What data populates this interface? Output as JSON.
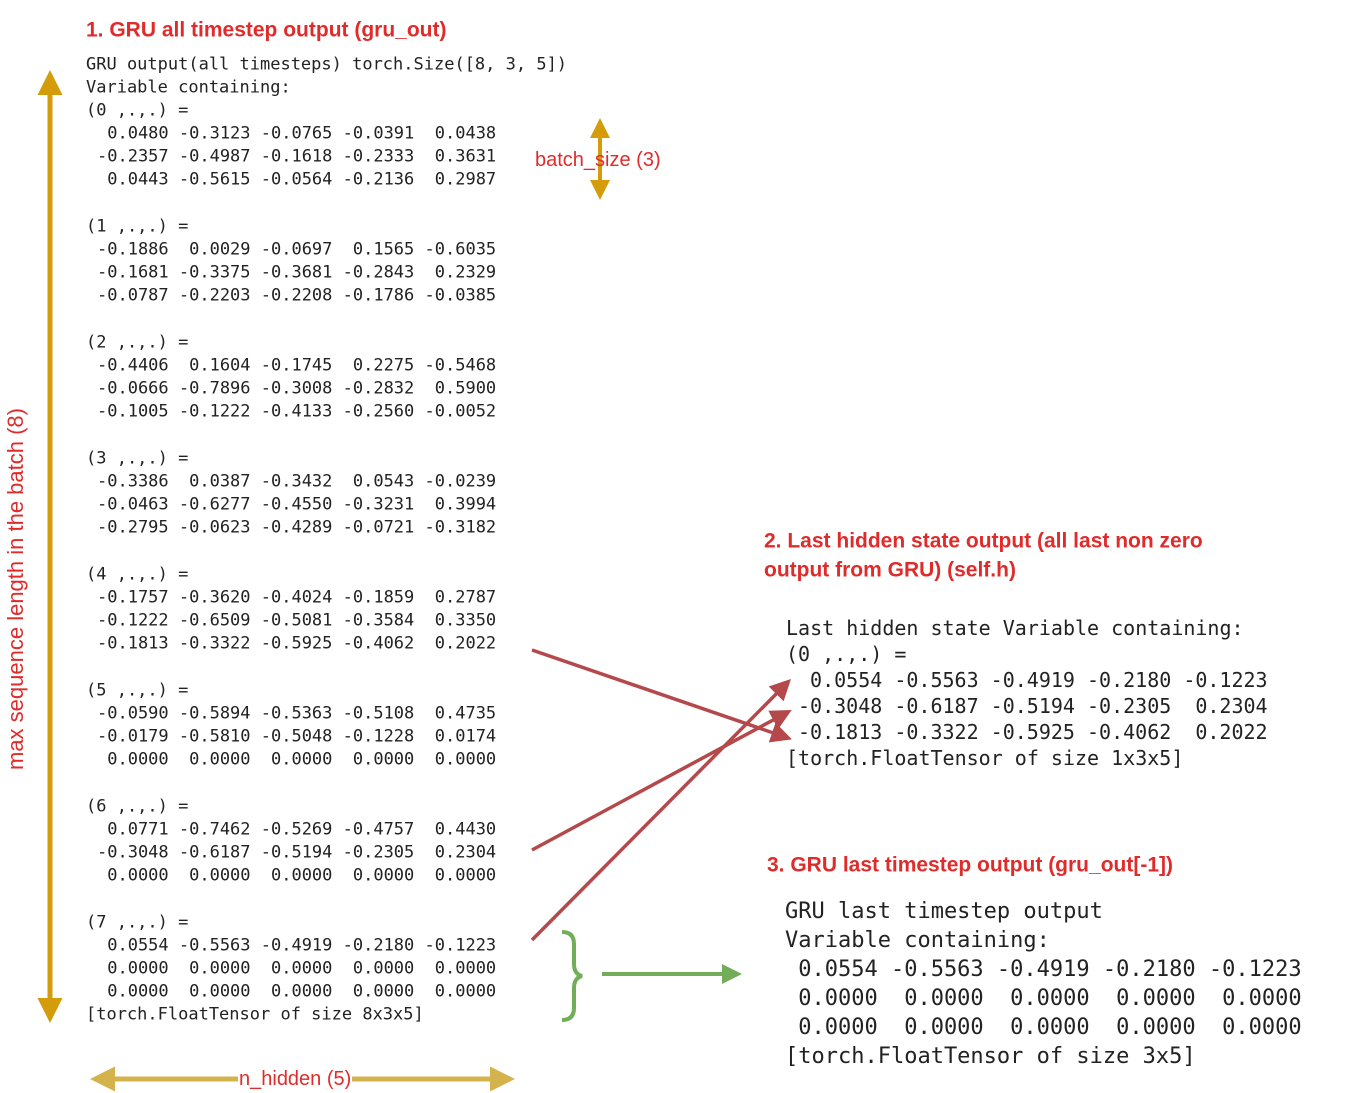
{
  "section1": {
    "title": "1. GRU all timestep output (gru_out)",
    "header": [
      "GRU output(all timesteps) torch.Size([8, 3, 5])",
      "Variable containing:"
    ],
    "blocks": [
      {
        "label": "(0 ,.,.) =",
        "rows": [
          " 0.0480 -0.3123 -0.0765 -0.0391  0.0438",
          "-0.2357 -0.4987 -0.1618 -0.2333  0.3631",
          " 0.0443 -0.5615 -0.0564 -0.2136  0.2987"
        ]
      },
      {
        "label": "(1 ,.,.) =",
        "rows": [
          "-0.1886  0.0029 -0.0697  0.1565 -0.6035",
          "-0.1681 -0.3375 -0.3681 -0.2843  0.2329",
          "-0.0787 -0.2203 -0.2208 -0.1786 -0.0385"
        ]
      },
      {
        "label": "(2 ,.,.) =",
        "rows": [
          "-0.4406  0.1604 -0.1745  0.2275 -0.5468",
          "-0.0666 -0.7896 -0.3008 -0.2832  0.5900",
          "-0.1005 -0.1222 -0.4133 -0.2560 -0.0052"
        ]
      },
      {
        "label": "(3 ,.,.) =",
        "rows": [
          "-0.3386  0.0387 -0.3432  0.0543 -0.0239",
          "-0.0463 -0.6277 -0.4550 -0.3231  0.3994",
          "-0.2795 -0.0623 -0.4289 -0.0721 -0.3182"
        ]
      },
      {
        "label": "(4 ,.,.) =",
        "rows": [
          "-0.1757 -0.3620 -0.4024 -0.1859  0.2787",
          "-0.1222 -0.6509 -0.5081 -0.3584  0.3350",
          "-0.1813 -0.3322 -0.5925 -0.4062  0.2022"
        ]
      },
      {
        "label": "(5 ,.,.) =",
        "rows": [
          "-0.0590 -0.5894 -0.5363 -0.5108  0.4735",
          "-0.0179 -0.5810 -0.5048 -0.1228  0.0174",
          " 0.0000  0.0000  0.0000  0.0000  0.0000"
        ]
      },
      {
        "label": "(6 ,.,.) =",
        "rows": [
          " 0.0771 -0.7462 -0.5269 -0.4757  0.4430",
          "-0.3048 -0.6187 -0.5194 -0.2305  0.2304",
          " 0.0000  0.0000  0.0000  0.0000  0.0000"
        ]
      },
      {
        "label": "(7 ,.,.) =",
        "rows": [
          " 0.0554 -0.5563 -0.4919 -0.2180 -0.1223",
          " 0.0000  0.0000  0.0000  0.0000  0.0000",
          " 0.0000  0.0000  0.0000  0.0000  0.0000"
        ]
      }
    ],
    "footer": "[torch.FloatTensor of size 8x3x5]"
  },
  "section2": {
    "title": [
      "2. Last hidden state output (all last non zero",
      "output from GRU) (self.h)"
    ],
    "lines": [
      "Last hidden state Variable containing:",
      "(0 ,.,.) =",
      " 0.0554 -0.5563 -0.4919 -0.2180 -0.1223",
      "-0.3048 -0.6187 -0.5194 -0.2305  0.2304",
      "-0.1813 -0.3322 -0.5925 -0.4062  0.2022",
      "[torch.FloatTensor of size 1x3x5]"
    ]
  },
  "section3": {
    "title": "3. GRU last timestep output (gru_out[-1])",
    "lines": [
      "GRU last timestep output",
      "Variable containing:",
      " 0.0554 -0.5563 -0.4919 -0.2180 -0.1223",
      " 0.0000  0.0000  0.0000  0.0000  0.0000",
      " 0.0000  0.0000  0.0000  0.0000  0.0000",
      "[torch.FloatTensor of size 3x5]"
    ]
  },
  "annotations": {
    "batch_size": "batch_size (3)",
    "seq_len": "max sequence length in the batch (8)",
    "n_hidden": "n_hidden (5)"
  }
}
